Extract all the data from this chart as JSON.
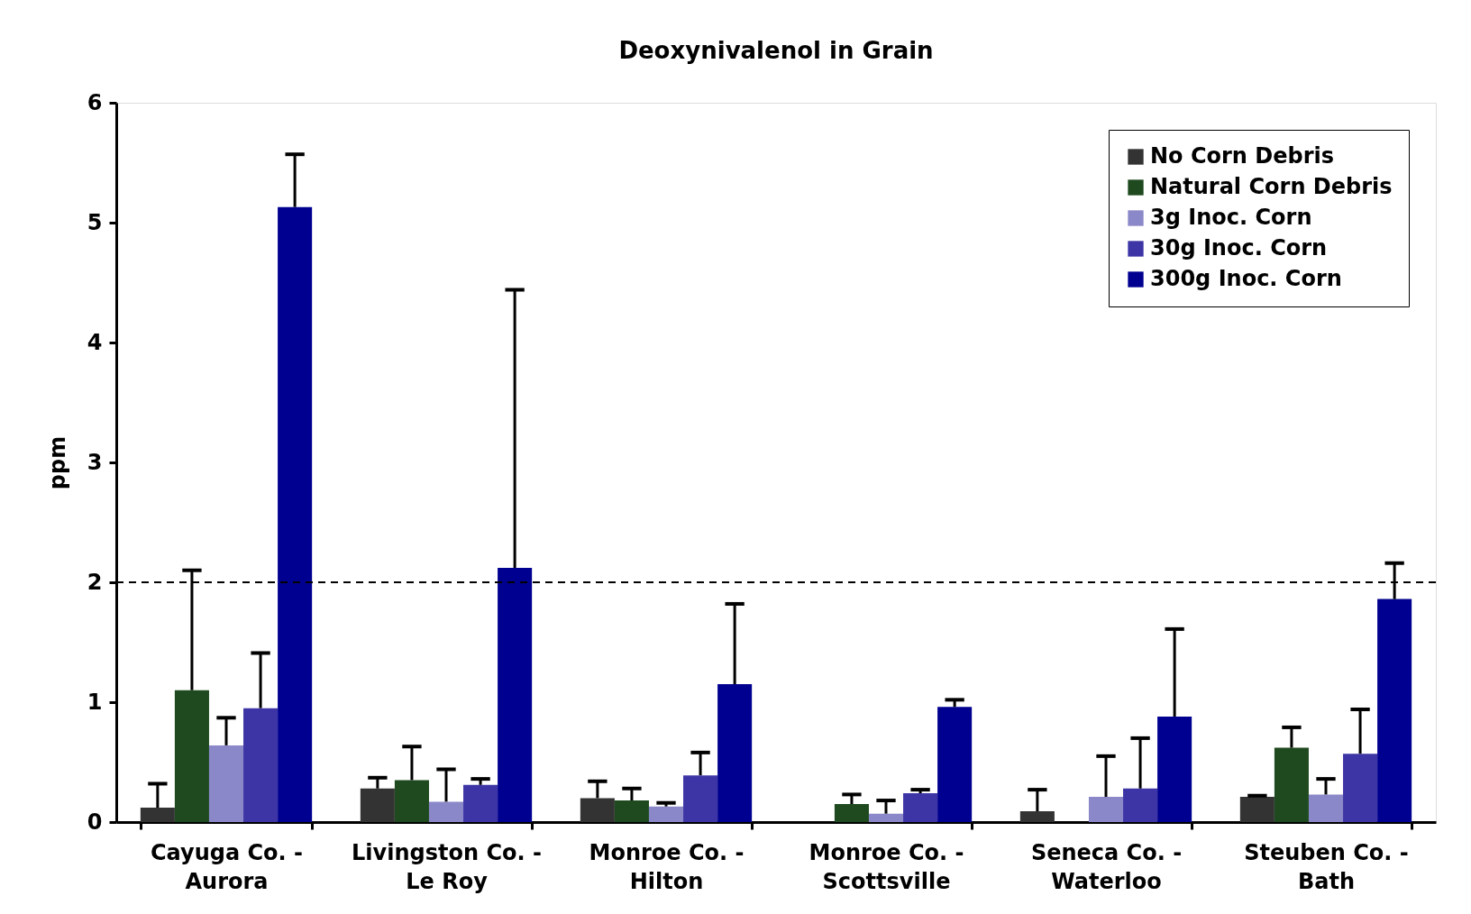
{
  "chart_data": {
    "type": "bar",
    "title": "Deoxynivalenol in Grain",
    "ylabel": "ppm",
    "categories": [
      "Cayuga Co. -\nAurora",
      "Livingston Co. -\nLe Roy",
      "Monroe Co. -\nHilton",
      "Monroe Co. -\nScottsville",
      "Seneca Co. -\nWaterloo",
      "Steuben Co. -\nBath"
    ],
    "series": [
      {
        "name": "No Corn Debris",
        "color": "#333333",
        "values": [
          0.12,
          0.28,
          0.2,
          null,
          0.09,
          0.21
        ],
        "errors": [
          [
            0.12,
            0.32
          ],
          [
            0.28,
            0.37
          ],
          [
            0.2,
            0.34
          ],
          null,
          [
            0.09,
            0.27
          ],
          [
            0.21,
            0.22
          ]
        ]
      },
      {
        "name": "Natural Corn Debris",
        "color": "#1f4a1f",
        "values": [
          1.1,
          0.35,
          0.18,
          0.15,
          null,
          0.62
        ],
        "errors": [
          [
            1.1,
            2.1
          ],
          [
            0.35,
            0.63
          ],
          [
            0.18,
            0.28
          ],
          [
            0.15,
            0.23
          ],
          null,
          [
            0.62,
            0.79
          ]
        ]
      },
      {
        "name": "3g Inoc. Corn",
        "color": "#8a88c8",
        "values": [
          0.64,
          0.17,
          0.13,
          0.07,
          0.21,
          0.23
        ],
        "errors": [
          [
            0.64,
            0.87
          ],
          [
            0.17,
            0.44
          ],
          [
            0.13,
            0.16
          ],
          [
            0.07,
            0.18
          ],
          [
            0.21,
            0.55
          ],
          [
            0.23,
            0.36
          ]
        ]
      },
      {
        "name": "30g Inoc. Corn",
        "color": "#3d35a5",
        "values": [
          0.95,
          0.31,
          0.39,
          0.24,
          0.28,
          0.57
        ],
        "errors": [
          [
            0.95,
            1.41
          ],
          [
            0.31,
            0.36
          ],
          [
            0.39,
            0.58
          ],
          [
            0.24,
            0.27
          ],
          [
            0.28,
            0.7
          ],
          [
            0.57,
            0.94
          ]
        ]
      },
      {
        "name": "300g Inoc. Corn",
        "color": "#000090",
        "values": [
          5.13,
          2.12,
          1.15,
          0.96,
          0.88,
          1.86
        ],
        "errors": [
          [
            5.13,
            5.57
          ],
          [
            2.12,
            4.44
          ],
          [
            1.15,
            1.82
          ],
          [
            0.96,
            1.02
          ],
          [
            0.88,
            1.61
          ],
          [
            1.86,
            2.16
          ]
        ]
      }
    ],
    "ylim": [
      0,
      6
    ],
    "yticks": [
      0,
      1,
      2,
      3,
      4,
      5,
      6
    ],
    "grid": false,
    "legend": "top right",
    "ref_lines": [
      {
        "axis": "y",
        "value": 2,
        "color": "#000000",
        "line_style": "dashed"
      }
    ]
  }
}
